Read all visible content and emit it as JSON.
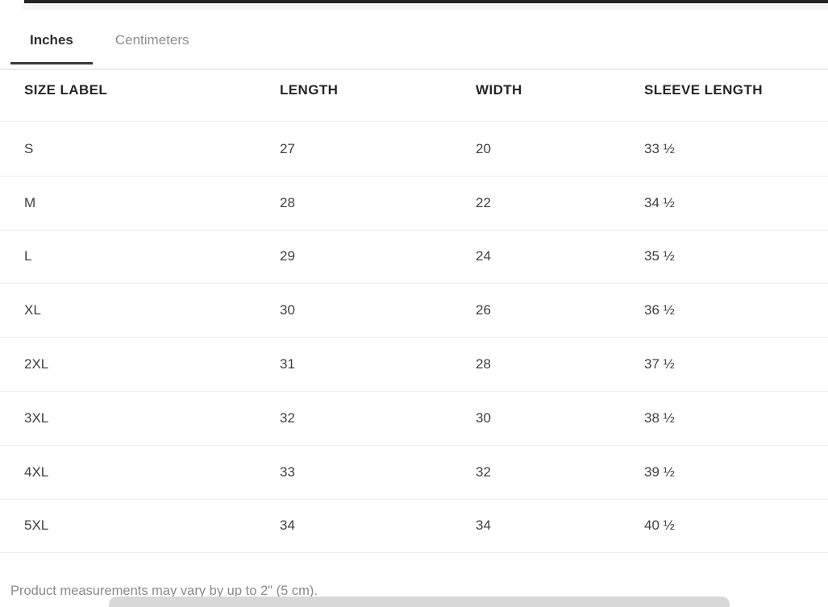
{
  "tabs": [
    {
      "label": "Inches",
      "active": true
    },
    {
      "label": "Centimeters",
      "active": false
    }
  ],
  "table": {
    "headers": [
      "SIZE LABEL",
      "LENGTH",
      "WIDTH",
      "SLEEVE LENGTH"
    ],
    "rows": [
      {
        "size": "S",
        "length": "27",
        "width": "20",
        "sleeve": "33 ½"
      },
      {
        "size": "M",
        "length": "28",
        "width": "22",
        "sleeve": "34 ½"
      },
      {
        "size": "L",
        "length": "29",
        "width": "24",
        "sleeve": "35 ½"
      },
      {
        "size": "XL",
        "length": "30",
        "width": "26",
        "sleeve": "36 ½"
      },
      {
        "size": "2XL",
        "length": "31",
        "width": "28",
        "sleeve": "37 ½"
      },
      {
        "size": "3XL",
        "length": "32",
        "width": "30",
        "sleeve": "38 ½"
      },
      {
        "size": "4XL",
        "length": "33",
        "width": "32",
        "sleeve": "39 ½"
      },
      {
        "size": "5XL",
        "length": "34",
        "width": "34",
        "sleeve": "40 ½"
      }
    ]
  },
  "footer": {
    "note": "Product measurements may vary by up to 2\" (5 cm)."
  },
  "colors": {
    "active_tab_text": "#2d2d2d",
    "active_tab_underline": "#3a3a3a",
    "inactive_tab_text": "#8e8e8e",
    "header_text": "#262626",
    "body_text": "#3f3f3f",
    "row_divider": "#ededed",
    "footer_text": "#8a8a8a",
    "bottom_bar": "#d8d8db",
    "top_strip": "#f5f5f6",
    "top_line": "#232323"
  }
}
